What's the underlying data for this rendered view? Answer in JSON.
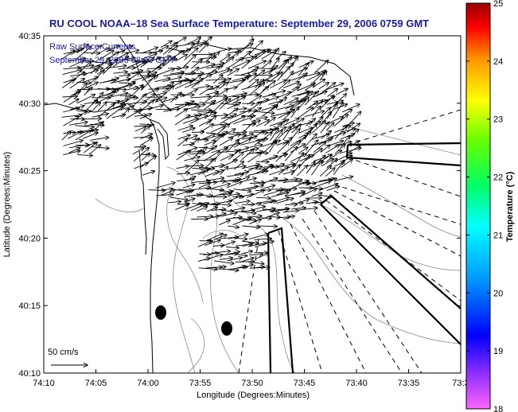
{
  "title": "RU COOL  NOAA–18  Sea Surface Temperature:  September 29, 2006 0759 GMT",
  "subtitle_line1": "Raw Surface Currents",
  "subtitle_line2": "September 29, 2006 08:00 GMT",
  "scale_label": "50 cm/s",
  "xlabel": "Longitude (Degrees:Minutes)",
  "ylabel": "Latitude (Degrees:Minutes)",
  "colorbar_label": "Temperature (°C)",
  "colors": {
    "title": "#1a1aa8",
    "coast": "#000000",
    "contour": "#888888"
  },
  "chart_data": {
    "type": "map",
    "x_ticks": [
      "74:10",
      "74:05",
      "74:00",
      "73:55",
      "73:50",
      "73:45",
      "73:40",
      "73:35",
      "73:3"
    ],
    "y_ticks": [
      "40:35",
      "40:30",
      "40:25",
      "40:20",
      "40:15",
      "40:10"
    ],
    "colorbar": {
      "min": 18,
      "max": 25,
      "ticks": [
        "25",
        "24",
        "23",
        "22",
        "21",
        "20",
        "19",
        "18"
      ]
    }
  }
}
